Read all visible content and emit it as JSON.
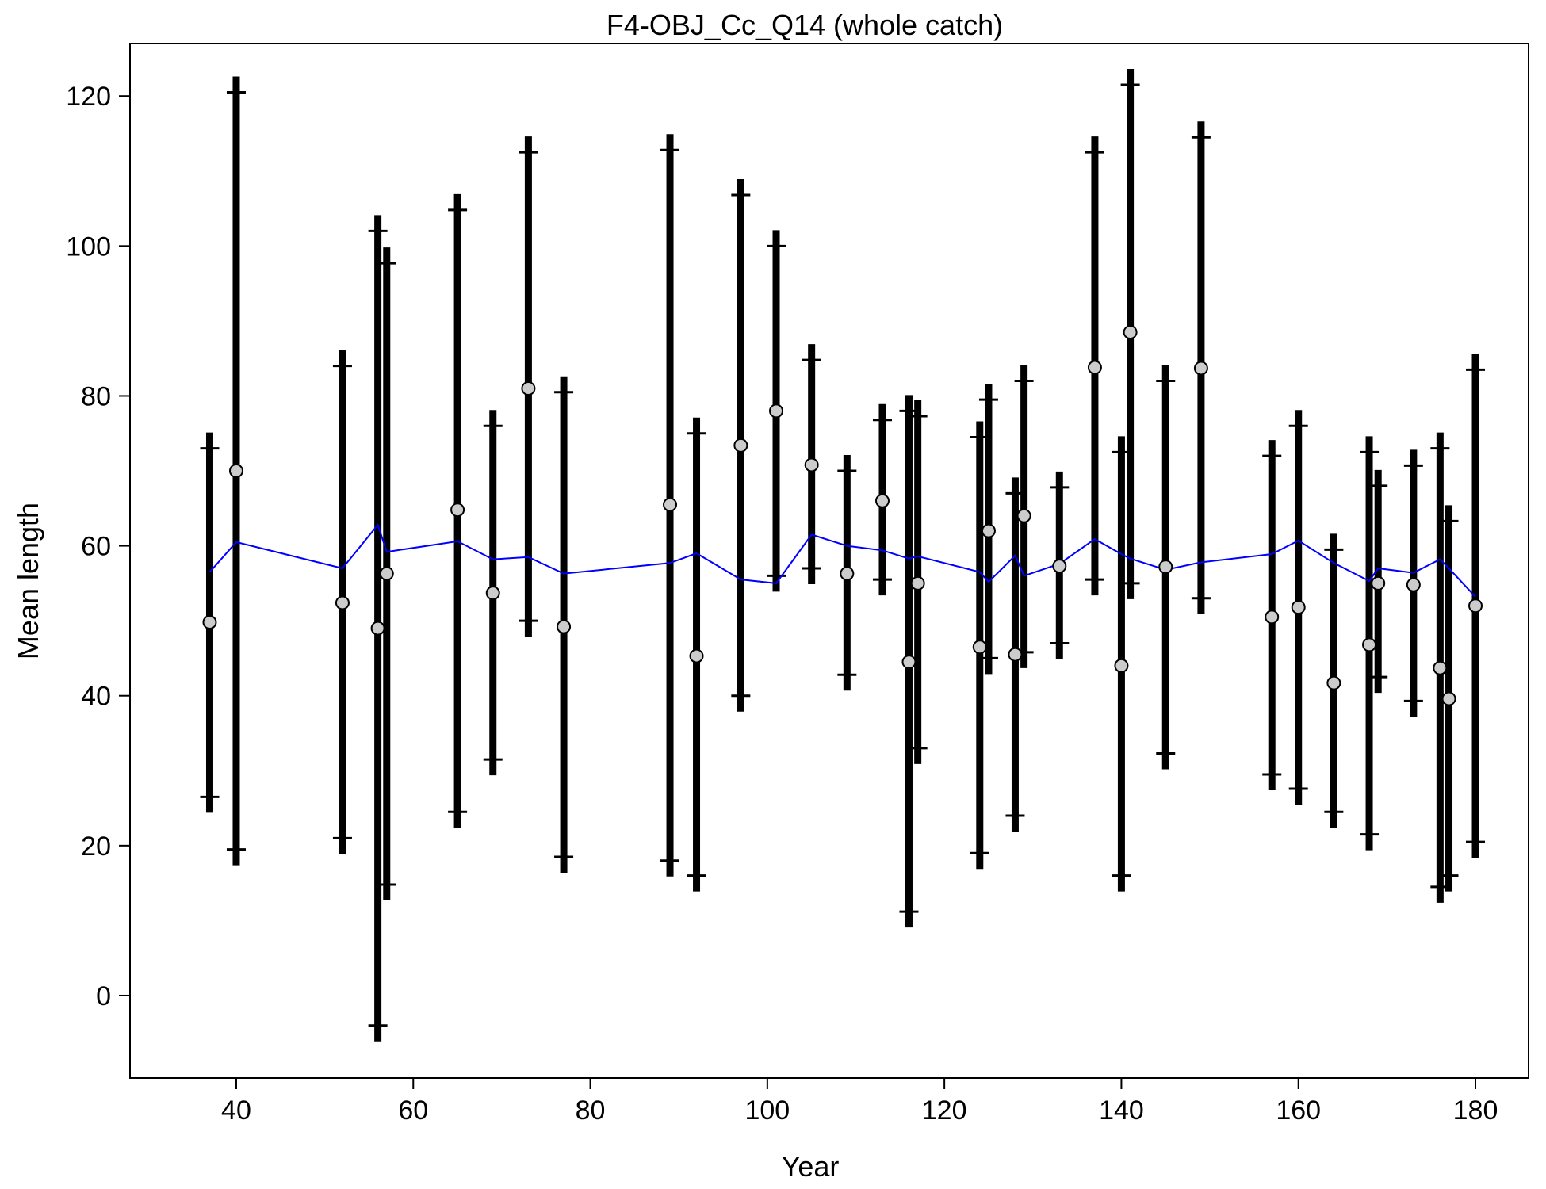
{
  "chart_data": {
    "type": "scatter",
    "title": "F4-OBJ_Cc_Q14 (whole catch)",
    "xlabel": "Year",
    "ylabel": "Mean length",
    "xlim": [
      28,
      186
    ],
    "ylim": [
      -11,
      127
    ],
    "xticks": [
      40,
      60,
      80,
      100,
      120,
      140,
      160,
      180
    ],
    "yticks": [
      0,
      20,
      40,
      60,
      80,
      100,
      120
    ],
    "colors": {
      "observed_fill": "#cccccc",
      "expected_line": "#0000ff",
      "error_bar": "#000000"
    },
    "series": [
      {
        "kind": "points_with_error_bars",
        "x": [
          37,
          40,
          52,
          56,
          57,
          65,
          69,
          73,
          77,
          89,
          92,
          97,
          101,
          105,
          109,
          113,
          116,
          117,
          124,
          125,
          128,
          129,
          133,
          137,
          140,
          141,
          145,
          149,
          157,
          160,
          164,
          168,
          169,
          173,
          176,
          177,
          180
        ],
        "y": [
          49.8,
          70.0,
          52.4,
          49.0,
          56.3,
          64.8,
          53.7,
          81.0,
          49.2,
          65.5,
          45.3,
          73.4,
          78.0,
          70.8,
          56.3,
          66.0,
          44.5,
          55.0,
          46.5,
          62.0,
          45.5,
          64.0,
          57.3,
          83.8,
          44.0,
          88.5,
          57.2,
          83.7,
          50.5,
          51.8,
          41.7,
          46.8,
          55.0,
          54.8,
          43.7,
          39.6,
          52.0
        ],
        "lower": [
          26.5,
          19.5,
          21.0,
          -4.0,
          14.8,
          24.5,
          31.5,
          50.0,
          18.5,
          18.0,
          16.0,
          40.0,
          56.0,
          57.0,
          42.8,
          55.5,
          11.2,
          33.0,
          19.0,
          45.0,
          24.0,
          45.8,
          47.0,
          55.5,
          16.0,
          55.0,
          32.3,
          53.0,
          29.5,
          27.6,
          24.5,
          21.5,
          42.5,
          39.3,
          14.5,
          16.0,
          20.5
        ],
        "upper": [
          73.0,
          120.5,
          84.0,
          102.0,
          97.7,
          104.8,
          76.0,
          112.5,
          80.5,
          112.8,
          75.0,
          106.8,
          100.0,
          84.8,
          70.0,
          76.8,
          78.0,
          77.3,
          74.5,
          79.5,
          67.0,
          82.0,
          67.8,
          112.5,
          72.5,
          121.5,
          82.0,
          114.5,
          72.0,
          76.0,
          59.5,
          72.5,
          68.0,
          70.7,
          73.0,
          63.3,
          83.5
        ]
      },
      {
        "kind": "expected_line",
        "x": [
          37,
          40,
          52,
          56,
          57,
          65,
          69,
          73,
          77,
          89,
          92,
          97,
          101,
          105,
          109,
          113,
          116,
          117,
          124,
          125,
          128,
          129,
          133,
          137,
          140,
          141,
          145,
          149,
          157,
          160,
          164,
          168,
          169,
          173,
          176,
          177,
          180
        ],
        "y": [
          56.5,
          60.5,
          57.0,
          62.8,
          59.2,
          60.6,
          58.2,
          58.5,
          56.3,
          57.7,
          59.0,
          55.5,
          55.0,
          61.5,
          60.0,
          59.4,
          58.3,
          58.6,
          56.5,
          55.2,
          58.7,
          56.0,
          57.6,
          60.9,
          58.9,
          58.3,
          56.8,
          57.8,
          58.9,
          60.7,
          57.7,
          55.3,
          57.0,
          56.4,
          58.2,
          57.0,
          53.2
        ]
      }
    ]
  }
}
